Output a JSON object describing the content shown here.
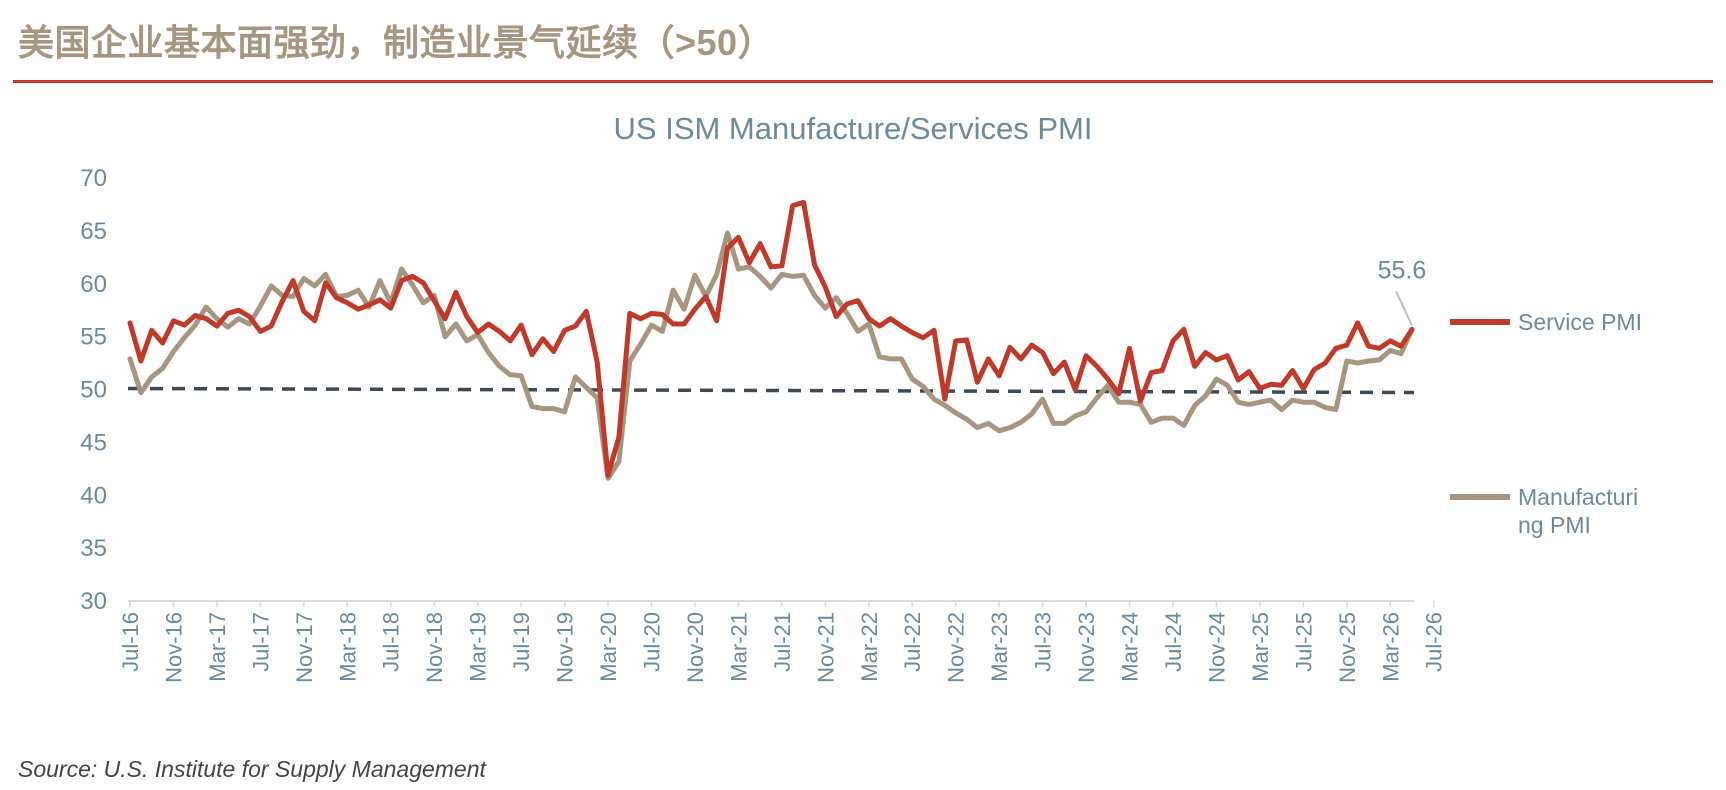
{
  "page": {
    "title": "美国企业基本面强劲，制造业景气延续（>50）",
    "source": "Source: U.S. Institute for Supply Management",
    "accent_color": "#c0392b"
  },
  "chart_data": {
    "type": "line",
    "title": "US ISM Manufacture/Services PMI",
    "ylim": [
      30,
      70
    ],
    "yticks": [
      30,
      35,
      40,
      45,
      50,
      55,
      60,
      65,
      70
    ],
    "x_tick_labels": [
      "Jul-16",
      "Nov-16",
      "Mar-17",
      "Jul-17",
      "Nov-17",
      "Mar-18",
      "Jul-18",
      "Nov-18",
      "Mar-19",
      "Jul-19",
      "Nov-19",
      "Mar-20",
      "Jul-20",
      "Nov-20",
      "Mar-21",
      "Jul-21",
      "Nov-21",
      "Mar-22",
      "Jul-22",
      "Nov-22",
      "Mar-23",
      "Jul-23",
      "Nov-23",
      "Mar-24",
      "Jul-24",
      "Nov-24",
      "Mar-25",
      "Jul-25",
      "Nov-25",
      "Mar-26",
      "Jul-26"
    ],
    "months_between_ticks": 4,
    "grid": false,
    "legend_position": "right",
    "reference_line": {
      "value": 50,
      "style": "dashed",
      "color": "#3d4a56"
    },
    "annotation": {
      "text": "55.6"
    },
    "series": [
      {
        "name": "Service PMI",
        "color": "#c0392b",
        "values": [
          56.2,
          52.6,
          55.5,
          54.3,
          56.4,
          56.0,
          56.9,
          56.6,
          55.9,
          57.1,
          57.4,
          56.8,
          55.4,
          55.9,
          58.2,
          60.2,
          57.3,
          56.4,
          60.0,
          58.6,
          58.1,
          57.5,
          57.9,
          58.4,
          57.6,
          60.2,
          60.6,
          60.0,
          58.3,
          56.6,
          59.1,
          56.8,
          55.3,
          56.1,
          55.4,
          54.5,
          56.0,
          53.2,
          54.7,
          53.5,
          55.5,
          55.9,
          57.3,
          52.5,
          41.8,
          45.4,
          57.1,
          56.6,
          57.1,
          57.0,
          56.1,
          56.1,
          57.5,
          58.7,
          56.4,
          63.3,
          64.3,
          61.9,
          63.7,
          61.5,
          61.6,
          67.3,
          67.6,
          61.7,
          59.6,
          56.8,
          58.0,
          58.3,
          56.6,
          55.9,
          56.6,
          55.9,
          55.3,
          54.8,
          55.5,
          49.0,
          54.5,
          54.6,
          50.6,
          52.8,
          51.2,
          53.9,
          52.8,
          54.1,
          53.4,
          51.4,
          52.5,
          49.9,
          53.1,
          52.1,
          50.9,
          49.5,
          53.8,
          48.8,
          51.5,
          51.7,
          54.5,
          55.6,
          52.1,
          53.4,
          52.7,
          53.1,
          50.8,
          51.6,
          50.0,
          50.4,
          50.3,
          51.7,
          50.0,
          51.8,
          52.4,
          53.8,
          54.1,
          56.2,
          54.0,
          53.8,
          54.5,
          54.0,
          55.6
        ]
      },
      {
        "name": "Manufacturing PMI",
        "color": "#a69680",
        "values": [
          52.8,
          49.6,
          51.1,
          51.9,
          53.5,
          54.8,
          56.0,
          57.7,
          56.6,
          55.8,
          56.6,
          56.1,
          57.8,
          59.7,
          58.8,
          58.7,
          60.4,
          59.7,
          60.8,
          58.7,
          58.8,
          59.3,
          57.7,
          60.2,
          58.1,
          61.3,
          59.8,
          58.1,
          58.8,
          54.9,
          56.1,
          54.5,
          55.1,
          53.4,
          52.1,
          51.3,
          51.2,
          48.3,
          48.1,
          48.1,
          47.8,
          51.1,
          50.1,
          49.1,
          41.5,
          43.1,
          52.6,
          54.2,
          56.0,
          55.4,
          59.3,
          57.5,
          60.7,
          58.7,
          60.8,
          64.7,
          61.3,
          61.5,
          60.6,
          59.5,
          60.8,
          60.6,
          60.7,
          58.8,
          57.6,
          58.6,
          57.1,
          55.4,
          56.1,
          53.0,
          52.8,
          52.8,
          50.9,
          50.2,
          49.0,
          48.4,
          47.7,
          47.1,
          46.3,
          46.7,
          46.0,
          46.3,
          46.8,
          47.6,
          49.0,
          46.7,
          46.7,
          47.4,
          47.8,
          49.1,
          50.3,
          48.7,
          48.7,
          48.5,
          46.8,
          47.2,
          47.2,
          46.5,
          48.4,
          49.3,
          50.9,
          50.3,
          48.7,
          48.5,
          48.7,
          48.9,
          48.0,
          48.9,
          48.7,
          48.7,
          48.2,
          48.0,
          52.6,
          52.4,
          52.6,
          52.7,
          53.6,
          53.3,
          55.6
        ]
      }
    ]
  }
}
